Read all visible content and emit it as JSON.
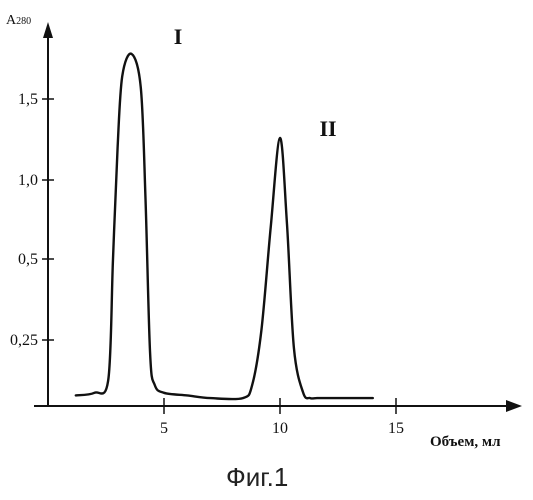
{
  "chart_data": {
    "type": "line",
    "ylabel_main": "A",
    "ylabel_sub": "280",
    "xlabel": "Объем, мл",
    "caption": "Фиг.1",
    "x_ticks": [
      "5",
      "10",
      "15"
    ],
    "x_tick_values": [
      5,
      10,
      15
    ],
    "y_ticks": [
      "0,25",
      "0,5",
      "1,0",
      "1,5"
    ],
    "xlim": [
      0,
      20
    ],
    "y_axis_scale": "non-linear",
    "grid": false,
    "peaks": [
      {
        "label": "I",
        "x": 3.3
      },
      {
        "label": "II",
        "x": 10.0
      }
    ],
    "series": [
      {
        "x": [
          1.2,
          2.0,
          2.6,
          2.8,
          3.0,
          3.2,
          3.6,
          4.0,
          4.2,
          4.4,
          4.6,
          5.0,
          6.0,
          7.0,
          8.4,
          8.8,
          9.2,
          9.6,
          10.0,
          10.3,
          10.6,
          11.0,
          11.3,
          11.6,
          12.2,
          13.0,
          14.0
        ],
        "y": [
          0.04,
          0.05,
          0.1,
          0.5,
          1.2,
          1.62,
          1.74,
          1.56,
          0.9,
          0.2,
          0.08,
          0.05,
          0.04,
          0.03,
          0.03,
          0.08,
          0.28,
          0.7,
          1.26,
          0.72,
          0.22,
          0.05,
          0.03,
          0.03,
          0.03,
          0.03,
          0.03
        ]
      }
    ]
  }
}
